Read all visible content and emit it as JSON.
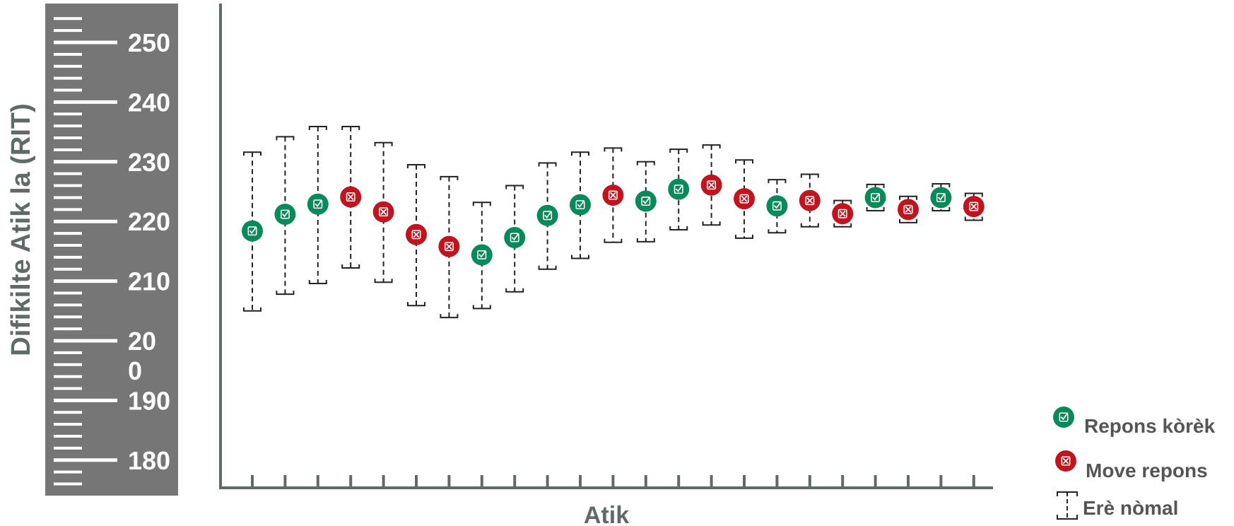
{
  "chart_data": {
    "type": "scatter",
    "title": "",
    "ylabel": "Difikilte Atik la (RIT)",
    "xlabel": "Atik",
    "ylim": [
      174,
      258
    ],
    "y_tick_labels": [
      "250",
      "240",
      "230",
      "220",
      "210",
      "20\n0",
      "190",
      "180"
    ],
    "y_tick_values": [
      250,
      240,
      230,
      220,
      210,
      200,
      190,
      180
    ],
    "legend": {
      "placement": "bottom-right",
      "correct_label": "Repons kòrèk",
      "wrong_label": "Move repons",
      "error_label": "Erè nòmal"
    },
    "colors": {
      "correct": "#0a8a5a",
      "wrong": "#c0141e",
      "ruler": "#767676",
      "axis": "#5f6b69",
      "error_bar": "#222222"
    },
    "icons": {
      "correct": "checkbox-check-icon",
      "wrong": "checkbox-x-icon"
    },
    "items": [
      {
        "value": 218.4,
        "low": 205.0,
        "high": 231.6,
        "result": "correct"
      },
      {
        "value": 221.2,
        "low": 207.8,
        "high": 234.2,
        "result": "correct"
      },
      {
        "value": 222.9,
        "low": 209.6,
        "high": 235.9,
        "result": "correct"
      },
      {
        "value": 224.1,
        "low": 212.2,
        "high": 235.9,
        "result": "wrong"
      },
      {
        "value": 221.6,
        "low": 209.8,
        "high": 233.2,
        "result": "wrong"
      },
      {
        "value": 217.8,
        "low": 205.9,
        "high": 229.5,
        "result": "wrong"
      },
      {
        "value": 215.8,
        "low": 203.9,
        "high": 227.5,
        "result": "wrong"
      },
      {
        "value": 214.4,
        "low": 205.4,
        "high": 223.2,
        "result": "correct"
      },
      {
        "value": 217.3,
        "low": 208.2,
        "high": 226.0,
        "result": "correct"
      },
      {
        "value": 221.0,
        "low": 212.0,
        "high": 229.8,
        "result": "correct"
      },
      {
        "value": 222.8,
        "low": 213.8,
        "high": 231.6,
        "result": "correct"
      },
      {
        "value": 224.4,
        "low": 216.5,
        "high": 232.3,
        "result": "wrong"
      },
      {
        "value": 223.4,
        "low": 216.6,
        "high": 230.0,
        "result": "correct"
      },
      {
        "value": 225.4,
        "low": 218.6,
        "high": 232.1,
        "result": "correct"
      },
      {
        "value": 226.1,
        "low": 219.4,
        "high": 232.8,
        "result": "wrong"
      },
      {
        "value": 223.8,
        "low": 217.2,
        "high": 230.3,
        "result": "wrong"
      },
      {
        "value": 222.6,
        "low": 218.1,
        "high": 227.0,
        "result": "correct"
      },
      {
        "value": 223.5,
        "low": 219.1,
        "high": 227.9,
        "result": "wrong"
      },
      {
        "value": 221.3,
        "low": 219.1,
        "high": 223.5,
        "result": "wrong"
      },
      {
        "value": 224.0,
        "low": 221.8,
        "high": 226.2,
        "result": "correct"
      },
      {
        "value": 222.0,
        "low": 219.8,
        "high": 224.2,
        "result": "wrong"
      },
      {
        "value": 224.0,
        "low": 221.8,
        "high": 226.3,
        "result": "correct"
      },
      {
        "value": 222.5,
        "low": 220.2,
        "high": 224.7,
        "result": "wrong"
      }
    ]
  }
}
